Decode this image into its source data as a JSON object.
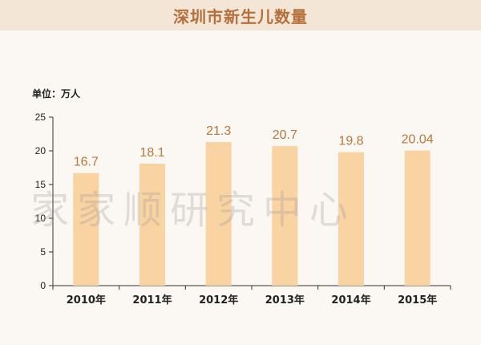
{
  "header": {
    "title": "深圳市新生儿数量"
  },
  "chart_data": {
    "type": "bar",
    "title": "深圳市新生儿数量",
    "unit_label": "单位：万人",
    "categories": [
      "2010年",
      "2011年",
      "2012年",
      "2013年",
      "2014年",
      "2015年"
    ],
    "values": [
      16.7,
      18.1,
      21.3,
      20.7,
      19.8,
      20.04
    ],
    "value_labels": [
      "16.7",
      "18.1",
      "21.3",
      "20.7",
      "19.8",
      "20.04"
    ],
    "ylim": [
      0,
      25
    ],
    "yticks": [
      0,
      5,
      10,
      15,
      20,
      25
    ],
    "grid": false,
    "legend": "none",
    "bar_color": "#fad3a3",
    "label_color": "#b37a3e"
  },
  "watermark": "家家顺研究中心"
}
